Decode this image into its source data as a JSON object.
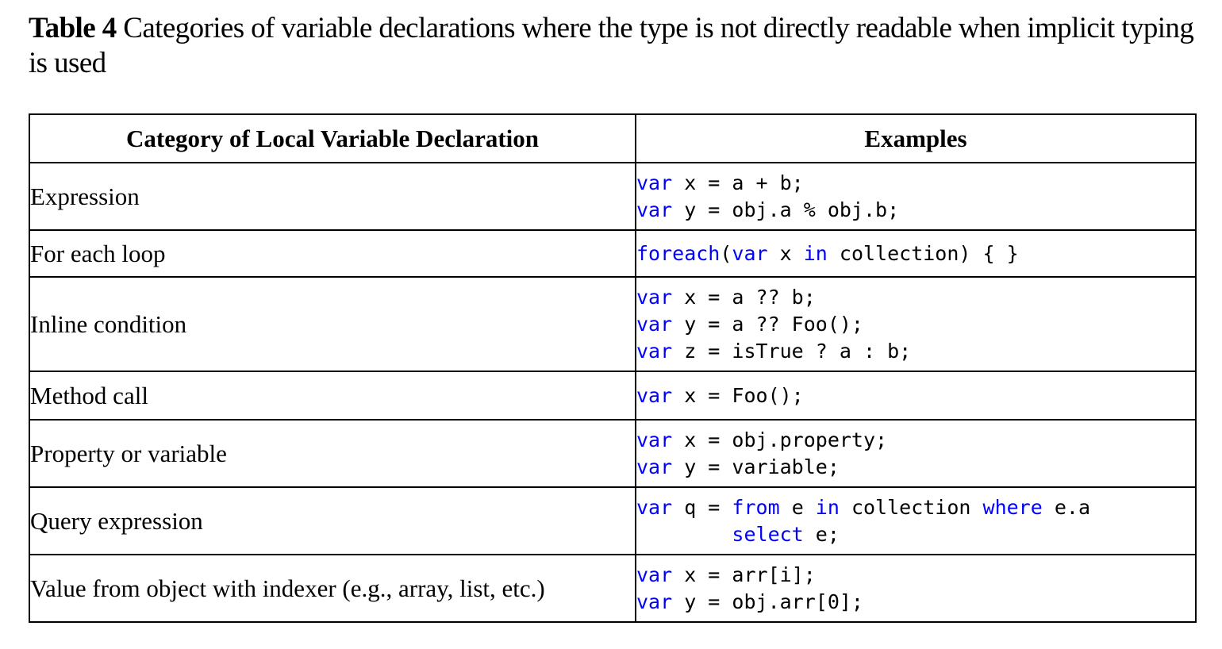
{
  "caption": {
    "label": "Table 4",
    "text": "Categories of variable declarations where the type is not directly readable when implicit typing is used"
  },
  "table": {
    "headers": [
      "Category of Local Variable Declaration",
      "Examples"
    ],
    "rows": [
      {
        "category": "Expression",
        "code": [
          [
            {
              "t": "var",
              "k": true
            },
            {
              "t": " x = a + b;"
            }
          ],
          [
            {
              "t": "var",
              "k": true
            },
            {
              "t": " y = obj.a % obj.b;"
            }
          ]
        ]
      },
      {
        "category": "For each loop",
        "code": [
          [
            {
              "t": "foreach",
              "k": true
            },
            {
              "t": "("
            },
            {
              "t": "var",
              "k": true
            },
            {
              "t": " x "
            },
            {
              "t": "in",
              "k": true
            },
            {
              "t": " collection) { }"
            }
          ]
        ]
      },
      {
        "category": "Inline condition",
        "code": [
          [
            {
              "t": "var",
              "k": true
            },
            {
              "t": " x = a ?? b;"
            }
          ],
          [
            {
              "t": "var",
              "k": true
            },
            {
              "t": " y = a ?? Foo();"
            }
          ],
          [
            {
              "t": "var",
              "k": true
            },
            {
              "t": " z = isTrue ? a : b;"
            }
          ]
        ]
      },
      {
        "category": "Method call",
        "code": [
          [
            {
              "t": "var",
              "k": true
            },
            {
              "t": " x = Foo();"
            }
          ]
        ]
      },
      {
        "category": "Property or variable",
        "code": [
          [
            {
              "t": "var",
              "k": true
            },
            {
              "t": " x = obj.property;"
            }
          ],
          [
            {
              "t": "var",
              "k": true
            },
            {
              "t": " y = variable;"
            }
          ]
        ]
      },
      {
        "category": "Query expression",
        "code": [
          [
            {
              "t": "var",
              "k": true
            },
            {
              "t": " q = "
            },
            {
              "t": "from",
              "k": true
            },
            {
              "t": " e "
            },
            {
              "t": "in",
              "k": true
            },
            {
              "t": " collection "
            },
            {
              "t": "where",
              "k": true
            },
            {
              "t": " e.a"
            }
          ],
          [
            {
              "t": "        "
            },
            {
              "t": "select",
              "k": true
            },
            {
              "t": " e;"
            }
          ]
        ]
      },
      {
        "category": "Value from object with indexer (e.g., array, list, etc.)",
        "code": [
          [
            {
              "t": "var",
              "k": true
            },
            {
              "t": " x = arr[i];"
            }
          ],
          [
            {
              "t": "var",
              "k": true
            },
            {
              "t": " y = obj.arr[0];"
            }
          ]
        ]
      }
    ]
  },
  "colors": {
    "keyword": "#0000ff",
    "text": "#000000",
    "border": "#000000"
  }
}
